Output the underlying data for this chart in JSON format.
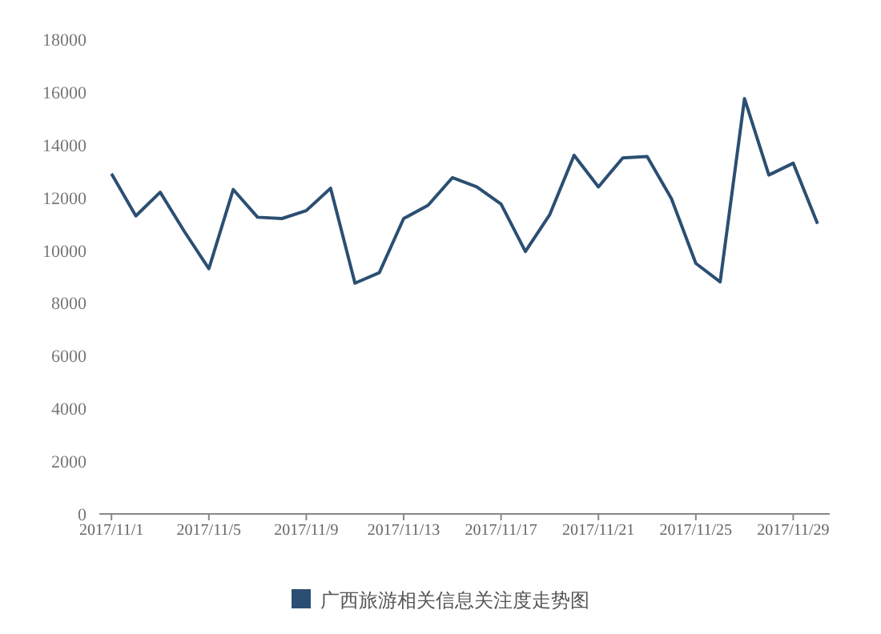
{
  "chart_data": {
    "type": "line",
    "categories": [
      "2017/11/1",
      null,
      null,
      null,
      "2017/11/5",
      null,
      null,
      null,
      "2017/11/9",
      null,
      null,
      null,
      "2017/11/13",
      null,
      null,
      null,
      "2017/11/17",
      null,
      null,
      null,
      "2017/11/21",
      null,
      null,
      null,
      "2017/11/25",
      null,
      null,
      null,
      "2017/11/29",
      null
    ],
    "series": [
      {
        "name": "广西旅游相关信息关注度走势图",
        "color": "#2b4f72",
        "values": [
          12900,
          11300,
          12200,
          10700,
          9300,
          12300,
          11250,
          11200,
          11500,
          12350,
          8750,
          9150,
          11200,
          11700,
          12750,
          12400,
          11750,
          9950,
          11350,
          13600,
          12400,
          13500,
          13550,
          11950,
          9500,
          8800,
          15750,
          12850,
          13300,
          11000
        ]
      }
    ],
    "ylim": [
      0,
      18000
    ],
    "yticks": [
      0,
      2000,
      4000,
      6000,
      8000,
      10000,
      12000,
      14000,
      16000,
      18000
    ],
    "grid": false,
    "legend": "bottom",
    "marker": "none",
    "line_style": "solid"
  }
}
